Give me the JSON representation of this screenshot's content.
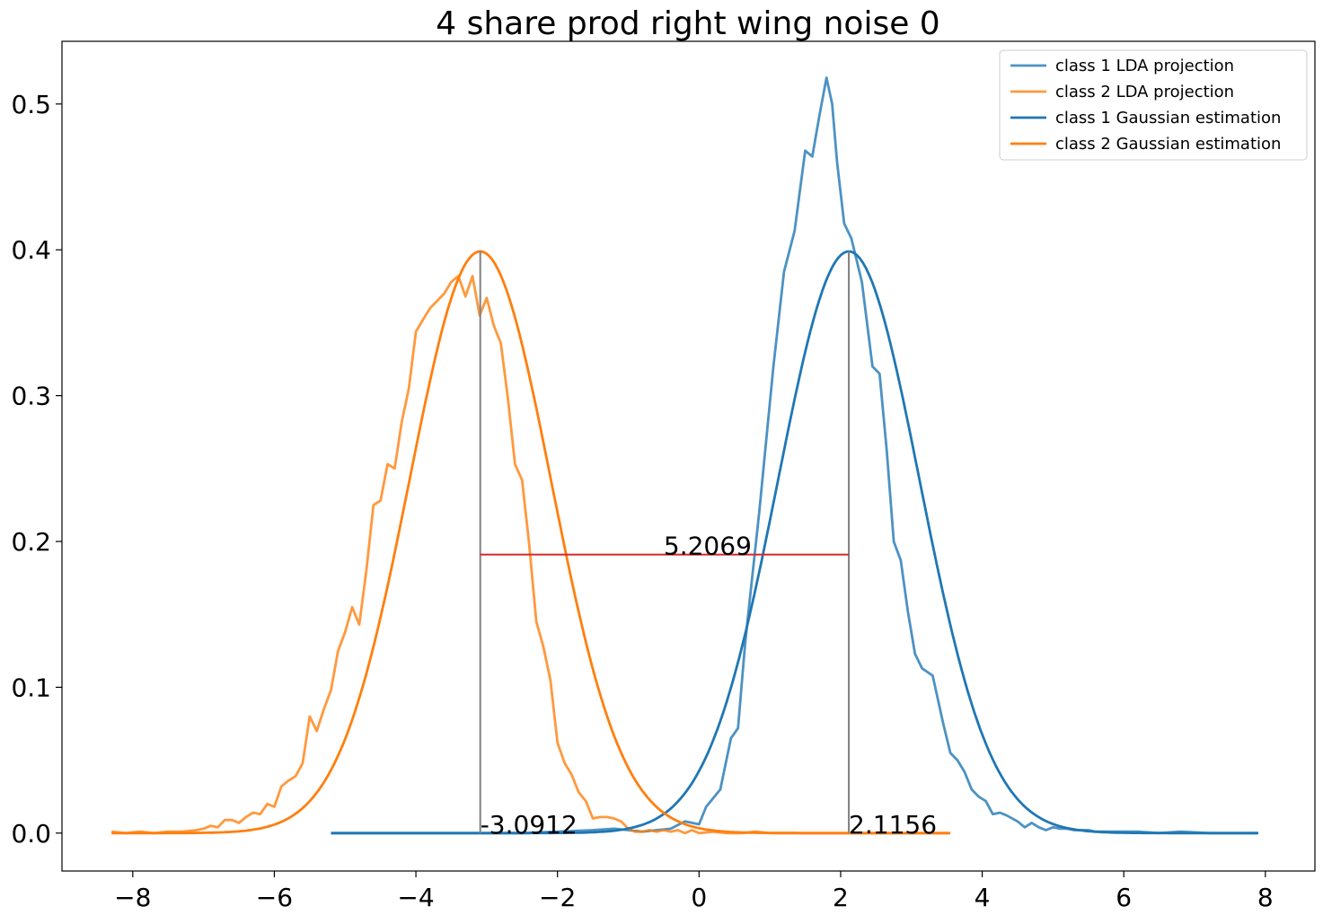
{
  "chart_data": {
    "type": "line",
    "title": "4 share prod right wing noise 0",
    "xlabel": "",
    "ylabel": "",
    "xlim": [
      -9.0,
      8.7
    ],
    "ylim": [
      -0.026,
      0.543
    ],
    "xticks": [
      -8,
      -6,
      -4,
      -2,
      0,
      2,
      4,
      6,
      8
    ],
    "xtick_labels": [
      "−8",
      "−6",
      "−4",
      "−2",
      "0",
      "2",
      "4",
      "6",
      "8"
    ],
    "yticks": [
      0.0,
      0.1,
      0.2,
      0.3,
      0.4,
      0.5
    ],
    "ytick_labels": [
      "0.0",
      "0.1",
      "0.2",
      "0.3",
      "0.4",
      "0.5"
    ],
    "grid": false,
    "legend_position": "top-right",
    "series": [
      {
        "name": "class 1 LDA projection",
        "color": "#1f77b4",
        "opacity": 0.8,
        "x": [
          -5.2,
          -4.5,
          -3.5,
          -2.5,
          -1.5,
          -1.2,
          -1.0,
          -0.8,
          -0.6,
          -0.4,
          -0.2,
          0.0,
          0.1,
          0.3,
          0.45,
          0.55,
          0.65,
          0.75,
          0.85,
          0.95,
          1.05,
          1.2,
          1.35,
          1.5,
          1.6,
          1.7,
          1.8,
          1.88,
          1.95,
          2.05,
          2.15,
          2.3,
          2.45,
          2.55,
          2.65,
          2.75,
          2.85,
          2.95,
          3.05,
          3.15,
          3.3,
          3.45,
          3.55,
          3.65,
          3.75,
          3.85,
          3.95,
          4.05,
          4.15,
          4.25,
          4.35,
          4.5,
          4.6,
          4.7,
          4.8,
          4.9,
          5.0,
          5.1,
          5.2,
          5.3,
          5.4,
          5.5,
          5.6,
          5.8,
          6.0,
          6.2,
          6.5,
          6.8,
          7.2,
          7.6,
          7.9
        ],
        "y": [
          0.0,
          0.0,
          0.0,
          0.0,
          0.002,
          0.003,
          0.002,
          0.001,
          0.002,
          0.003,
          0.008,
          0.006,
          0.018,
          0.03,
          0.065,
          0.072,
          0.13,
          0.175,
          0.22,
          0.27,
          0.32,
          0.385,
          0.413,
          0.468,
          0.464,
          0.492,
          0.518,
          0.5,
          0.46,
          0.418,
          0.408,
          0.378,
          0.32,
          0.315,
          0.263,
          0.2,
          0.187,
          0.152,
          0.123,
          0.113,
          0.108,
          0.075,
          0.055,
          0.05,
          0.042,
          0.03,
          0.025,
          0.022,
          0.013,
          0.014,
          0.012,
          0.008,
          0.004,
          0.007,
          0.004,
          0.002,
          0.004,
          0.003,
          0.003,
          0.002,
          0.002,
          0.002,
          0.001,
          0.001,
          0.001,
          0.001,
          0.0,
          0.001,
          0.0,
          0.0,
          0.0
        ]
      },
      {
        "name": "class 2 LDA projection",
        "color": "#ff7f0e",
        "opacity": 0.8,
        "x": [
          -8.3,
          -8.1,
          -7.9,
          -7.7,
          -7.5,
          -7.3,
          -7.1,
          -7.0,
          -6.9,
          -6.8,
          -6.7,
          -6.6,
          -6.5,
          -6.4,
          -6.3,
          -6.2,
          -6.1,
          -6.0,
          -5.9,
          -5.8,
          -5.7,
          -5.6,
          -5.5,
          -5.4,
          -5.3,
          -5.2,
          -5.1,
          -5.0,
          -4.9,
          -4.8,
          -4.7,
          -4.6,
          -4.5,
          -4.4,
          -4.3,
          -4.2,
          -4.1,
          -4.0,
          -3.9,
          -3.8,
          -3.7,
          -3.6,
          -3.5,
          -3.4,
          -3.3,
          -3.2,
          -3.1,
          -3.0,
          -2.9,
          -2.8,
          -2.7,
          -2.6,
          -2.5,
          -2.4,
          -2.3,
          -2.2,
          -2.1,
          -2.0,
          -1.9,
          -1.8,
          -1.7,
          -1.6,
          -1.5,
          -1.4,
          -1.3,
          -1.2,
          -1.1,
          -1.0,
          -0.9,
          -0.8,
          -0.7,
          -0.6,
          -0.5,
          -0.4,
          -0.3,
          -0.2,
          -0.1,
          0.0,
          0.2,
          0.4,
          0.6,
          0.8,
          1.0,
          1.2,
          1.5,
          2.0,
          2.5,
          3.0,
          3.5
        ],
        "y": [
          0.001,
          0.0,
          0.001,
          0.0,
          0.001,
          0.001,
          0.002,
          0.003,
          0.005,
          0.004,
          0.009,
          0.009,
          0.007,
          0.011,
          0.014,
          0.013,
          0.02,
          0.018,
          0.032,
          0.036,
          0.039,
          0.048,
          0.08,
          0.07,
          0.085,
          0.098,
          0.125,
          0.138,
          0.155,
          0.143,
          0.18,
          0.225,
          0.228,
          0.253,
          0.25,
          0.282,
          0.305,
          0.344,
          0.352,
          0.36,
          0.365,
          0.37,
          0.378,
          0.382,
          0.368,
          0.382,
          0.355,
          0.367,
          0.348,
          0.336,
          0.298,
          0.253,
          0.242,
          0.198,
          0.145,
          0.128,
          0.105,
          0.062,
          0.048,
          0.04,
          0.028,
          0.022,
          0.01,
          0.011,
          0.011,
          0.01,
          0.008,
          0.003,
          0.001,
          0.001,
          0.002,
          0.001,
          0.002,
          0.001,
          0.002,
          0.0,
          0.002,
          0.0,
          0.001,
          0.0,
          0.0,
          0.001,
          0.0,
          0.0,
          0.0,
          0.0,
          0.0,
          0.0,
          0.0
        ]
      },
      {
        "name": "class 1 Gaussian estimation",
        "color": "#1f77b4",
        "opacity": 1.0,
        "type": "gaussian",
        "mean": 2.1156,
        "std": 1.0,
        "x_range": [
          -5.2,
          7.9
        ]
      },
      {
        "name": "class 2 Gaussian estimation",
        "color": "#ff7f0e",
        "opacity": 1.0,
        "type": "gaussian",
        "mean": -3.0912,
        "std": 1.0,
        "x_range": [
          -8.3,
          3.55
        ]
      }
    ],
    "annotations": [
      {
        "text": "-3.0912",
        "x": -3.0912,
        "y": 0.0
      },
      {
        "text": "2.1156",
        "x": 2.1156,
        "y": 0.0
      },
      {
        "text": "5.2069",
        "x": -0.5,
        "y": 0.191
      }
    ],
    "vlines": [
      {
        "x": -3.0912,
        "y0": 0.0,
        "y1": 0.399,
        "color": "#808080"
      },
      {
        "x": 2.1156,
        "y0": 0.0,
        "y1": 0.399,
        "color": "#808080"
      }
    ],
    "hlines": [
      {
        "y": 0.191,
        "x0": -3.0912,
        "x1": 2.1156,
        "color": "#d62728"
      }
    ]
  }
}
